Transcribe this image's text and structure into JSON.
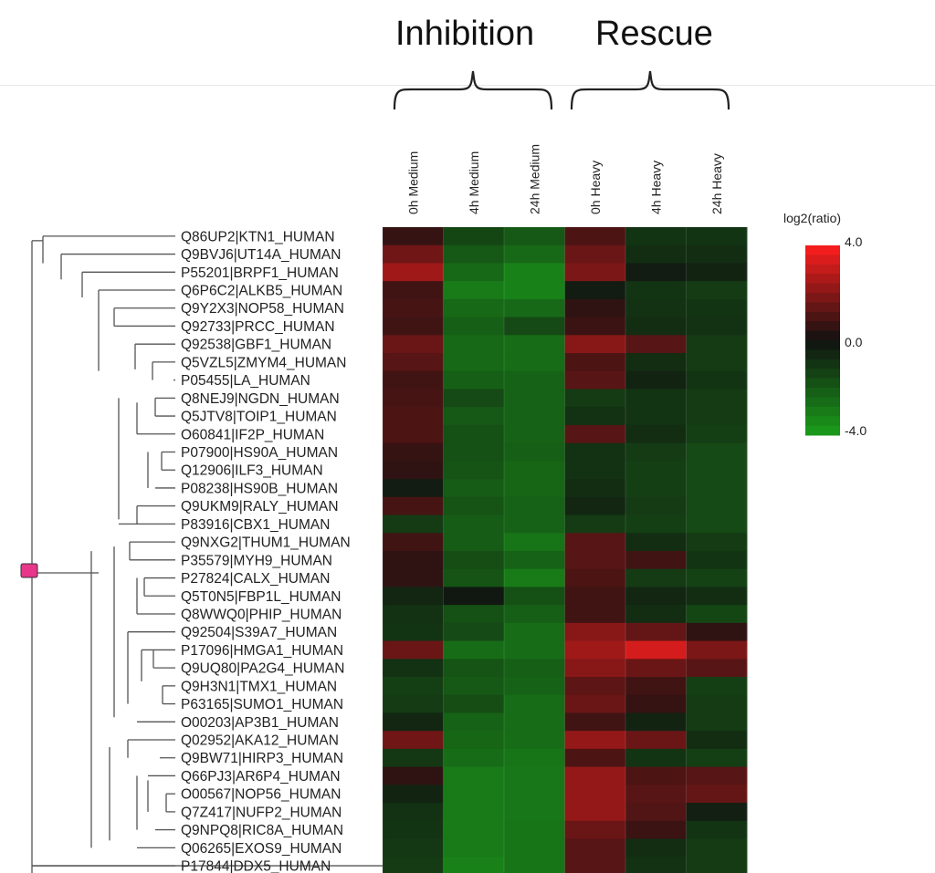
{
  "groups": {
    "inhibition": "Inhibition",
    "rescue": "Rescue"
  },
  "chart_data": {
    "type": "heatmap",
    "columns": [
      "0h Medium",
      "4h Medium",
      "24h Medium",
      "0h Heavy",
      "4h Heavy",
      "24h Heavy"
    ],
    "rows": [
      "Q86UP2|KTN1_HUMAN",
      "Q9BVJ6|UT14A_HUMAN",
      "P55201|BRPF1_HUMAN",
      "Q6P6C2|ALKB5_HUMAN",
      "Q9Y2X3|NOP58_HUMAN",
      "Q92733|PRCC_HUMAN",
      "Q92538|GBF1_HUMAN",
      "Q5VZL5|ZMYM4_HUMAN",
      "P05455|LA_HUMAN",
      "Q8NEJ9|NGDN_HUMAN",
      "Q5JTV8|TOIP1_HUMAN",
      "O60841|IF2P_HUMAN",
      "P07900|HS90A_HUMAN",
      "Q12906|ILF3_HUMAN",
      "P08238|HS90B_HUMAN",
      "Q9UKM9|RALY_HUMAN",
      "P83916|CBX1_HUMAN",
      "Q9NXG2|THUM1_HUMAN",
      "P35579|MYH9_HUMAN",
      "P27824|CALX_HUMAN",
      "Q5T0N5|FBP1L_HUMAN",
      "Q8WWQ0|PHIP_HUMAN",
      "Q92504|S39A7_HUMAN",
      "P17096|HMGA1_HUMAN",
      "Q9UQ80|PA2G4_HUMAN",
      "Q9H3N1|TMX1_HUMAN",
      "P63165|SUMO1_HUMAN",
      "O00203|AP3B1_HUMAN",
      "Q02952|AKA12_HUMAN",
      "Q9BW71|HIRP3_HUMAN",
      "Q66PJ3|AR6P4_HUMAN",
      "O00567|NOP56_HUMAN",
      "Q7Z417|NUFP2_HUMAN",
      "Q9NPQ8|RIC8A_HUMAN",
      "Q06265|EXOS9_HUMAN",
      "P17844|DDX5_HUMAN"
    ],
    "values": [
      [
        0.6,
        -1.5,
        -2.0,
        1.0,
        -1.0,
        -1.0
      ],
      [
        1.6,
        -2.0,
        -2.5,
        1.5,
        -0.8,
        -0.8
      ],
      [
        2.4,
        -2.5,
        -3.2,
        1.8,
        -0.3,
        -0.5
      ],
      [
        0.8,
        -3.0,
        -3.2,
        -0.3,
        -1.0,
        -1.2
      ],
      [
        0.9,
        -2.5,
        -2.5,
        0.5,
        -0.9,
        -1.0
      ],
      [
        0.8,
        -2.2,
        -1.6,
        0.7,
        -0.8,
        -0.9
      ],
      [
        1.5,
        -2.5,
        -2.6,
        2.0,
        1.2,
        -1.2
      ],
      [
        1.2,
        -2.5,
        -2.6,
        1.0,
        -0.8,
        -1.2
      ],
      [
        0.8,
        -2.2,
        -2.3,
        1.2,
        -0.5,
        -1.0
      ],
      [
        0.9,
        -1.6,
        -2.3,
        -1.2,
        -1.0,
        -1.2
      ],
      [
        1.0,
        -2.0,
        -2.3,
        -0.9,
        -1.0,
        -1.2
      ],
      [
        1.0,
        -1.8,
        -2.3,
        1.2,
        -0.8,
        -1.3
      ],
      [
        0.6,
        -1.8,
        -2.2,
        -0.9,
        -1.2,
        -1.6
      ],
      [
        0.5,
        -1.9,
        -2.4,
        -0.9,
        -1.3,
        -1.6
      ],
      [
        -0.3,
        -2.1,
        -2.4,
        -0.8,
        -1.3,
        -1.6
      ],
      [
        0.9,
        -1.9,
        -2.3,
        -0.6,
        -1.2,
        -1.6
      ],
      [
        -1.2,
        -2.1,
        -2.3,
        -1.2,
        -1.3,
        -1.6
      ],
      [
        0.8,
        -2.1,
        -2.8,
        1.2,
        -0.8,
        -1.2
      ],
      [
        0.5,
        -1.7,
        -2.3,
        1.2,
        0.8,
        -1.0
      ],
      [
        0.5,
        -1.9,
        -3.0,
        1.0,
        -1.2,
        -1.4
      ],
      [
        -0.6,
        -0.2,
        -1.8,
        0.8,
        -0.6,
        -0.8
      ],
      [
        -0.9,
        -1.8,
        -2.2,
        0.8,
        -0.8,
        -1.5
      ],
      [
        -1.0,
        -1.6,
        -2.6,
        2.0,
        1.4,
        0.5
      ],
      [
        1.5,
        -2.6,
        -2.6,
        2.4,
        3.3,
        1.8
      ],
      [
        -0.9,
        -1.9,
        -2.2,
        2.0,
        1.5,
        1.2
      ],
      [
        -1.3,
        -2.0,
        -2.3,
        1.3,
        0.8,
        -1.3
      ],
      [
        -1.2,
        -1.7,
        -2.6,
        1.5,
        0.6,
        -1.2
      ],
      [
        -0.6,
        -2.3,
        -2.6,
        0.8,
        -0.5,
        -1.2
      ],
      [
        1.6,
        -2.4,
        -2.6,
        2.2,
        1.5,
        -0.8
      ],
      [
        -1.1,
        -2.6,
        -2.8,
        1.0,
        -1.0,
        -1.3
      ],
      [
        0.5,
        -3.0,
        -2.9,
        2.2,
        1.0,
        1.2
      ],
      [
        -0.5,
        -3.0,
        -2.9,
        2.2,
        1.2,
        1.4
      ],
      [
        -0.9,
        -3.0,
        -2.9,
        2.2,
        1.1,
        -0.4
      ],
      [
        -1.0,
        -3.0,
        -2.8,
        1.5,
        0.7,
        -1.0
      ],
      [
        -1.1,
        -3.0,
        -2.8,
        1.2,
        -0.8,
        -1.2
      ],
      [
        -1.2,
        -3.2,
        -2.8,
        1.2,
        -0.9,
        -1.2
      ]
    ],
    "scale": {
      "title": "log2(ratio)",
      "min": -4.0,
      "mid": 0.0,
      "max": 4.0,
      "min_color": "#1a9e1a",
      "mid_color": "#111111",
      "max_color": "#ff1e1e",
      "tick_labels": [
        "4.0",
        "0.0",
        "-4.0"
      ]
    },
    "dendrogram_node_color": "#e8368a"
  }
}
